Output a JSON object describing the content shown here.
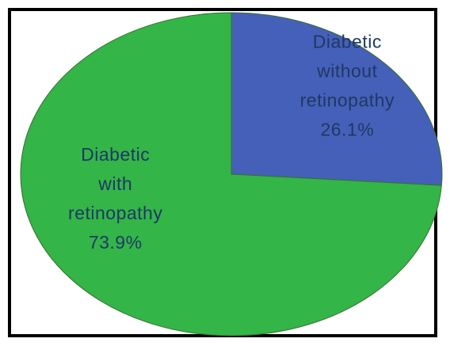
{
  "chart_data": {
    "type": "pie",
    "title": "",
    "slices": [
      {
        "label_lines": [
          "Diabetic",
          "without",
          "retinopathy"
        ],
        "value_label": "26.1%",
        "value": 26.1,
        "color": "#4560b8",
        "text_color": "#1f3864"
      },
      {
        "label_lines": [
          "Diabetic",
          "with",
          "retinopathy"
        ],
        "value_label": "73.9%",
        "value": 73.9,
        "color": "#33b548",
        "text_color": "#1f3864"
      }
    ],
    "legend": "none"
  }
}
